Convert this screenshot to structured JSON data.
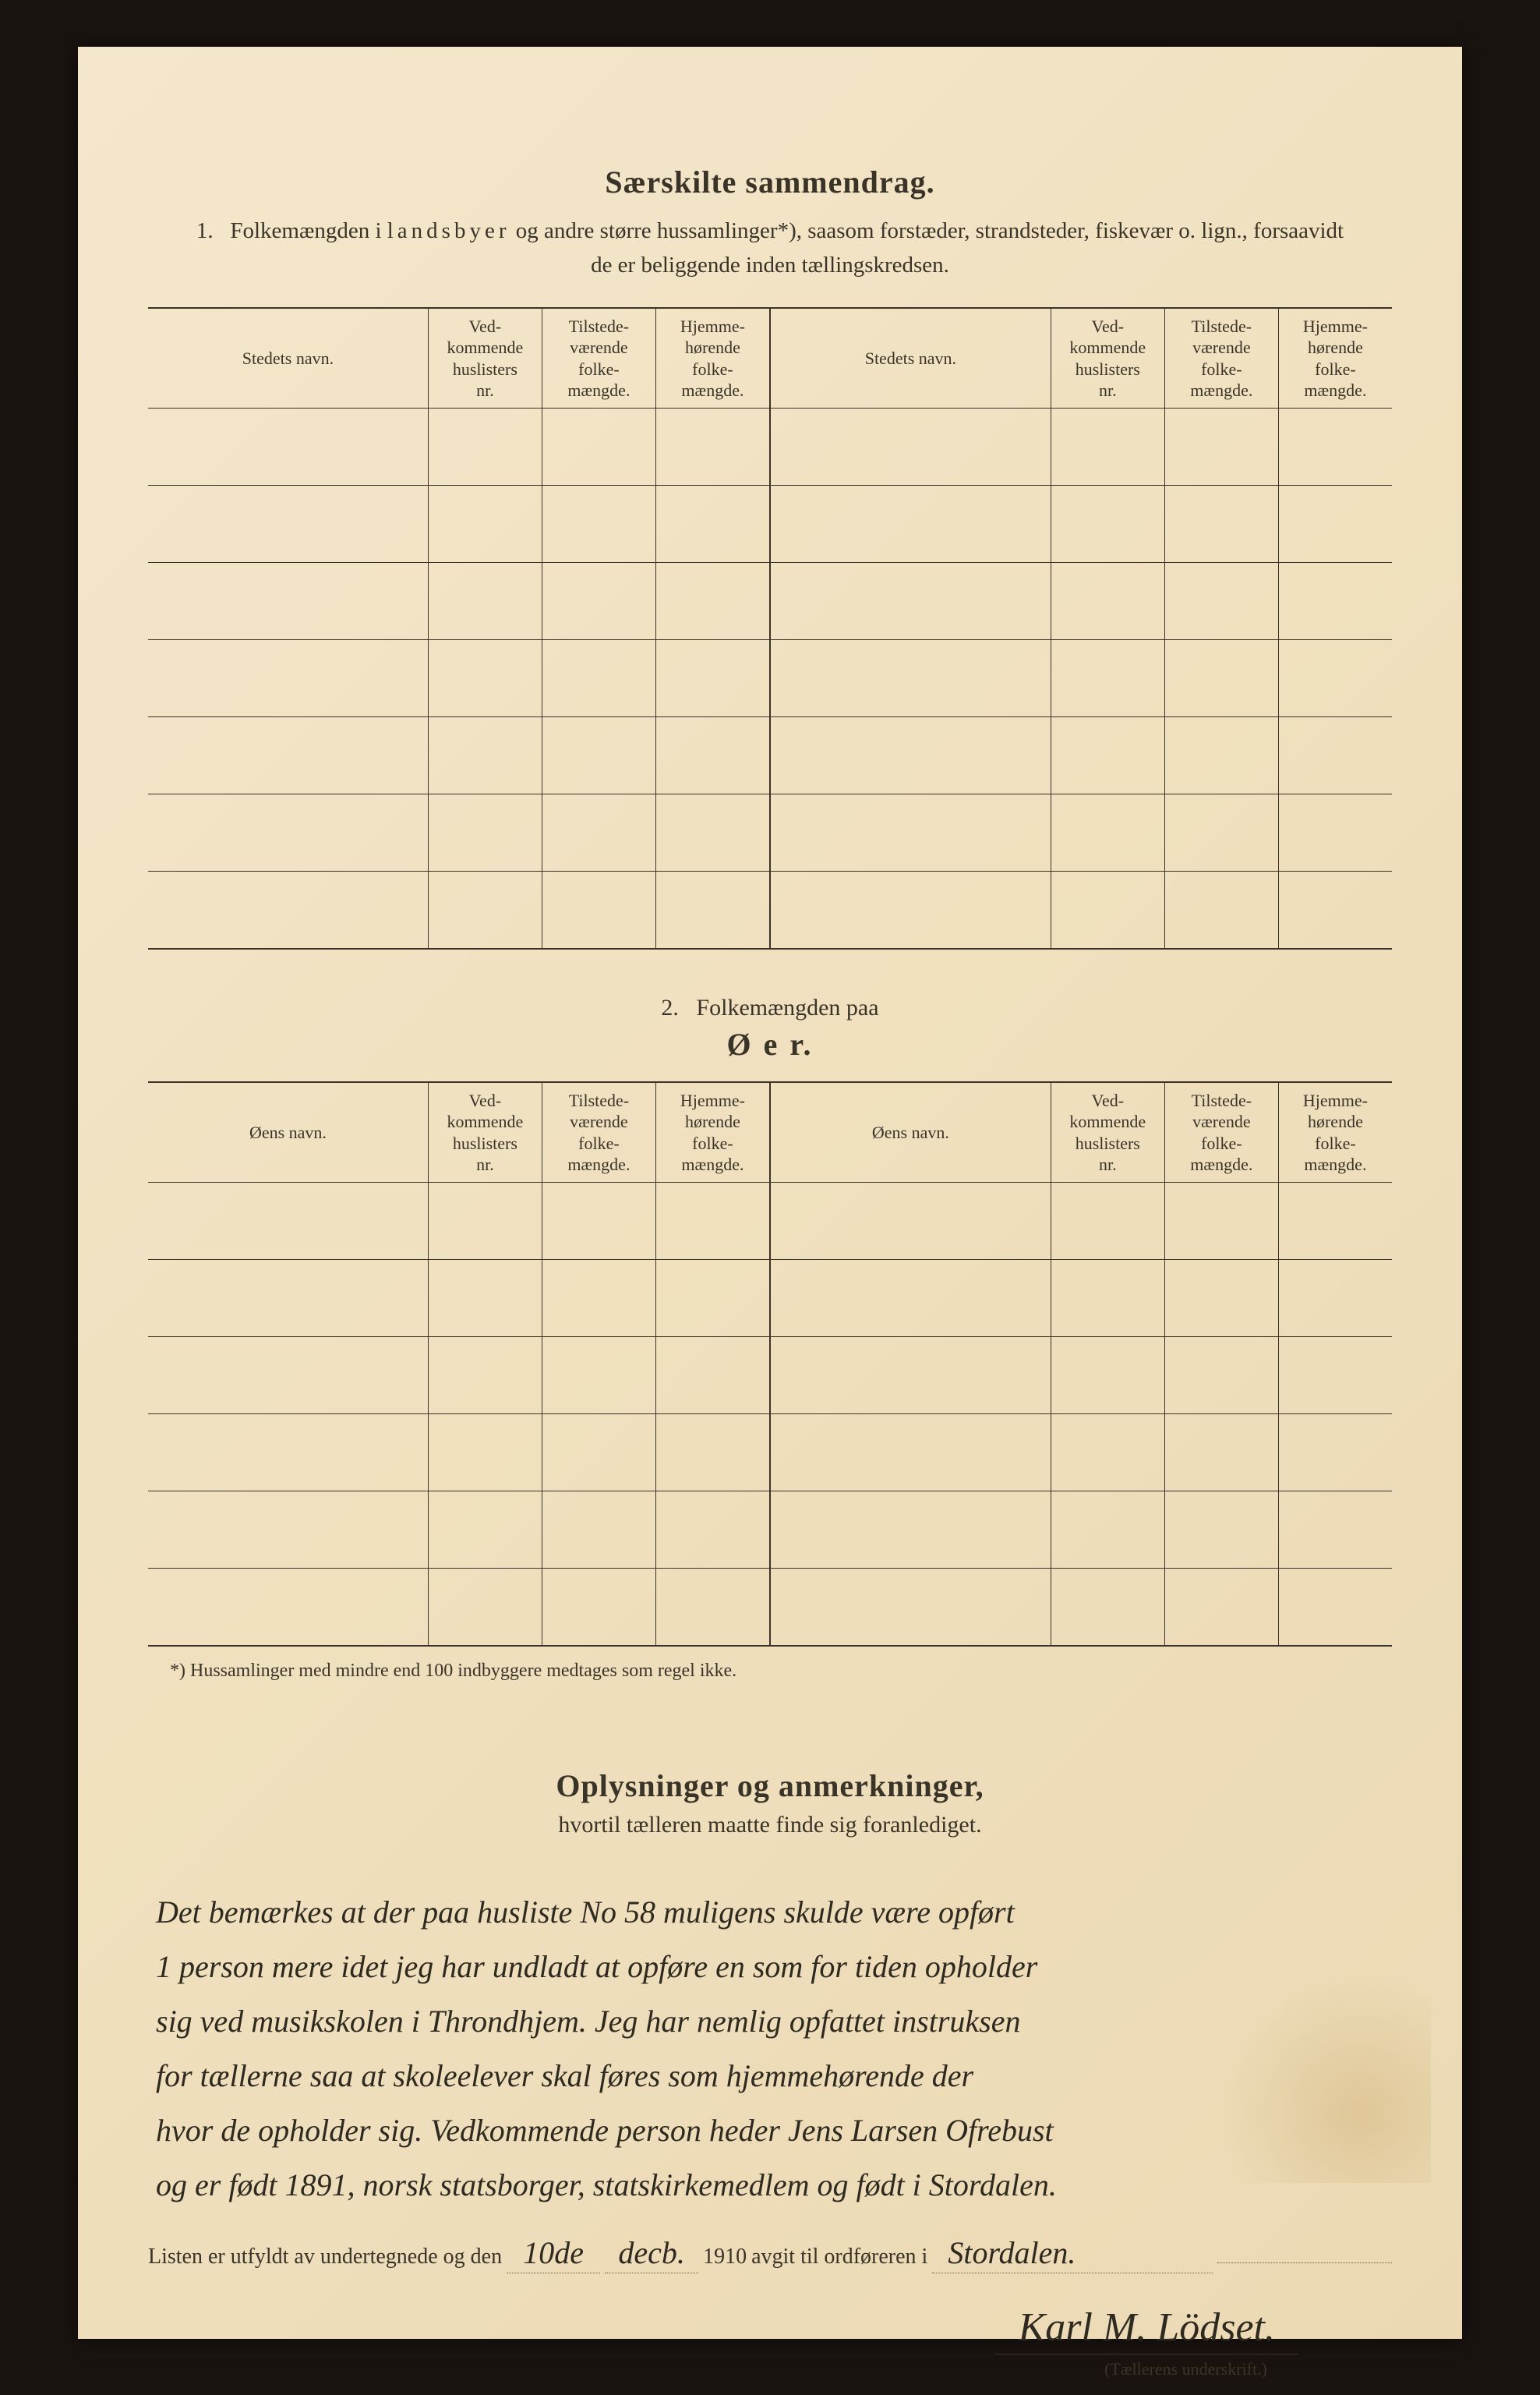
{
  "section1": {
    "title": "Særskilte sammendrag.",
    "item_number": "1.",
    "subtitle_pre": "Folkemængden i ",
    "subtitle_spaced": "landsbyer",
    "subtitle_post": " og andre større hussamlinger*), saasom forstæder, strandsteder, fiskevær o. lign., forsaavidt de er beliggende inden tællingskredsen.",
    "headers": {
      "name": "Stedets navn.",
      "huslister": "Ved-\nkommende\nhuslisters\nnr.",
      "tilstede": "Tilstede-\nværende\nfolke-\nmængde.",
      "hjemme": "Hjemme-\nhørende\nfolke-\nmængde."
    },
    "rows_per_side": 7
  },
  "section2": {
    "item_number": "2.",
    "lead": "Folkemængden paa",
    "title": "Ø e r.",
    "headers": {
      "name": "Øens navn.",
      "huslister": "Ved-\nkommende\nhuslisters\nnr.",
      "tilstede": "Tilstede-\nværende\nfolke-\nmængde.",
      "hjemme": "Hjemme-\nhørende\nfolke-\nmængde."
    },
    "rows_per_side": 6
  },
  "footnote": "*) Hussamlinger med mindre end 100 indbyggere medtages som regel ikke.",
  "notes": {
    "title": "Oplysninger og anmerkninger,",
    "subtitle": "hvortil tælleren maatte finde sig foranlediget.",
    "handwritten_lines": [
      "Det bemærkes at der paa husliste No 58 muligens skulde være opført",
      "1 person mere idet jeg har undladt at opføre en som for tiden opholder",
      "sig ved musikskolen i Throndhjem. Jeg har nemlig opfattet instruksen",
      "for tællerne saa at skoleelever skal føres som hjemmehørende der",
      "hvor de opholder sig. Vedkommende person heder Jens Larsen Ofrebust",
      "og er født 1891, norsk statsborger, statskirkemedlem og født i Stordalen."
    ]
  },
  "certification": {
    "prefix": "Listen er utfyldt av undertegnede og den",
    "date_day": "10de",
    "date_month": "decb.",
    "year_printed": "1910",
    "mid": "avgit til ordføreren i",
    "place": "Stordalen.",
    "signature": "Karl M. Lödset.",
    "sig_caption": "(Tællerens underskrift.)"
  }
}
